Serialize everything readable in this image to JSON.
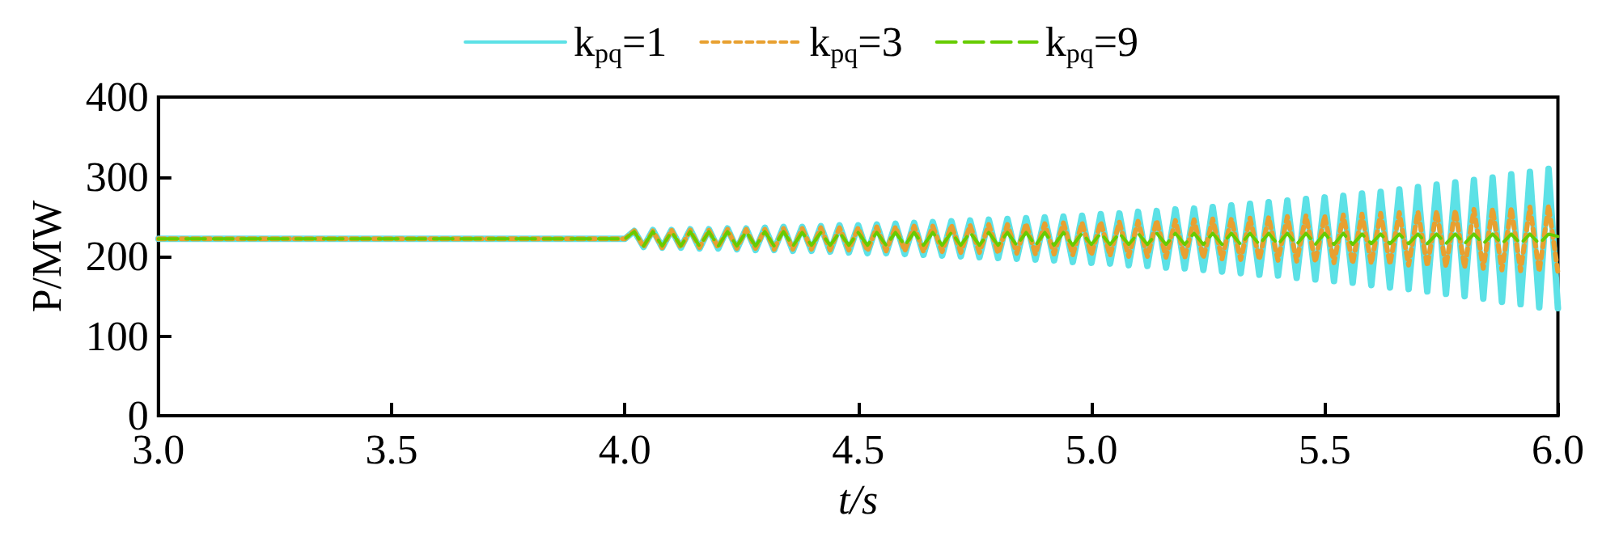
{
  "chart_data": {
    "type": "line",
    "xlabel": "t/s",
    "ylabel": "P/MW",
    "x": [
      3.0,
      4.0,
      4.02,
      4.04,
      4.06,
      4.08,
      4.1,
      4.12,
      4.14,
      4.16,
      4.18,
      4.2,
      4.22,
      4.24,
      4.26,
      4.28,
      4.3,
      4.32,
      4.34,
      4.36,
      4.38,
      4.4,
      4.42,
      4.44,
      4.46,
      4.48,
      4.5,
      4.52,
      4.54,
      4.56,
      4.58,
      4.6,
      4.62,
      4.64,
      4.66,
      4.68,
      4.7,
      4.72,
      4.74,
      4.76,
      4.78,
      4.8,
      4.82,
      4.84,
      4.86,
      4.88,
      4.9,
      4.92,
      4.94,
      4.96,
      4.98,
      5.0,
      5.02,
      5.04,
      5.06,
      5.08,
      5.1,
      5.12,
      5.14,
      5.16,
      5.18,
      5.2,
      5.22,
      5.24,
      5.26,
      5.28,
      5.3,
      5.32,
      5.34,
      5.36,
      5.38,
      5.4,
      5.42,
      5.44,
      5.46,
      5.48,
      5.5,
      5.52,
      5.54,
      5.56,
      5.58,
      5.6,
      5.62,
      5.64,
      5.66,
      5.68,
      5.7,
      5.72,
      5.74,
      5.76,
      5.78,
      5.8,
      5.82,
      5.84,
      5.86,
      5.88,
      5.9,
      5.92,
      5.94,
      5.96,
      5.98,
      6.0
    ],
    "series": [
      {
        "name": "k$_{pq}$=1",
        "color": "#5ce1e6",
        "line_style": "solid",
        "values": [
          222,
          222,
          232,
          212,
          233,
          211,
          233,
          211,
          234,
          210,
          234,
          210,
          235,
          209,
          235,
          208,
          236,
          208,
          237,
          207,
          237,
          207,
          238,
          206,
          239,
          205,
          239,
          204,
          240,
          204,
          241,
          203,
          242,
          202,
          243,
          201,
          244,
          200,
          245,
          199,
          246,
          198,
          247,
          197,
          248,
          196,
          249,
          195,
          250,
          193,
          251,
          192,
          253,
          191,
          254,
          189,
          256,
          188,
          257,
          186,
          259,
          185,
          260,
          183,
          262,
          181,
          264,
          179,
          266,
          177,
          268,
          176,
          270,
          173,
          272,
          171,
          274,
          169,
          276,
          167,
          279,
          164,
          281,
          161,
          284,
          159,
          287,
          156,
          290,
          153,
          293,
          150,
          296,
          147,
          299,
          143,
          303,
          140,
          306,
          136,
          310,
          135
        ]
      },
      {
        "name": "k$_{pq}$=3",
        "color": "#e8a030",
        "line_style": "dotted",
        "values": [
          222,
          222,
          232,
          212,
          232,
          211,
          233,
          211,
          233,
          211,
          233,
          211,
          234,
          210,
          234,
          210,
          234,
          209,
          235,
          209,
          235,
          209,
          236,
          208,
          236,
          208,
          236,
          207,
          237,
          207,
          237,
          207,
          238,
          206,
          238,
          206,
          239,
          205,
          239,
          205,
          240,
          204,
          240,
          204,
          241,
          203,
          241,
          203,
          242,
          202,
          242,
          202,
          243,
          201,
          243,
          200,
          244,
          200,
          245,
          199,
          245,
          198,
          246,
          198,
          247,
          197,
          247,
          196,
          248,
          196,
          249,
          195,
          250,
          194,
          251,
          193,
          251,
          192,
          252,
          191,
          253,
          191,
          254,
          190,
          255,
          189,
          256,
          188,
          257,
          187,
          258,
          186,
          259,
          185,
          260,
          183,
          261,
          182,
          262,
          181,
          264,
          180
        ]
      },
      {
        "name": "k$_{pq}$=9",
        "color": "#66cc00",
        "line_style": "dashed",
        "values": [
          222,
          222,
          231,
          213,
          231,
          213,
          231,
          213,
          231,
          213,
          231,
          213,
          231,
          213,
          231,
          213,
          231,
          213,
          231,
          213,
          230,
          214,
          230,
          214,
          230,
          214,
          230,
          214,
          230,
          214,
          230,
          214,
          230,
          214,
          230,
          214,
          230,
          214,
          230,
          214,
          230,
          214,
          230,
          214,
          230,
          214,
          230,
          214,
          230,
          214,
          229,
          215,
          229,
          215,
          229,
          215,
          229,
          215,
          229,
          215,
          229,
          215,
          229,
          215,
          229,
          215,
          229,
          215,
          229,
          215,
          229,
          215,
          229,
          215,
          229,
          215,
          229,
          215,
          229,
          215,
          228,
          216,
          228,
          216,
          228,
          216,
          228,
          216,
          228,
          216,
          228,
          216,
          228,
          216,
          228,
          216,
          228,
          216,
          228,
          216,
          228,
          225
        ]
      }
    ],
    "xlim": [
      3.0,
      6.0
    ],
    "xticks": [
      {
        "value": 3.0,
        "label": "3.0"
      },
      {
        "value": 3.5,
        "label": "3.5"
      },
      {
        "value": 4.0,
        "label": "4.0"
      },
      {
        "value": 4.5,
        "label": "4.5"
      },
      {
        "value": 5.0,
        "label": "5.0"
      },
      {
        "value": 5.5,
        "label": "5.5"
      },
      {
        "value": 6.0,
        "label": "6.0"
      }
    ],
    "ylim": [
      0,
      400
    ],
    "yticks": [
      0,
      100,
      200,
      300,
      400
    ],
    "grid": false,
    "legend": "top",
    "marker": "none"
  }
}
